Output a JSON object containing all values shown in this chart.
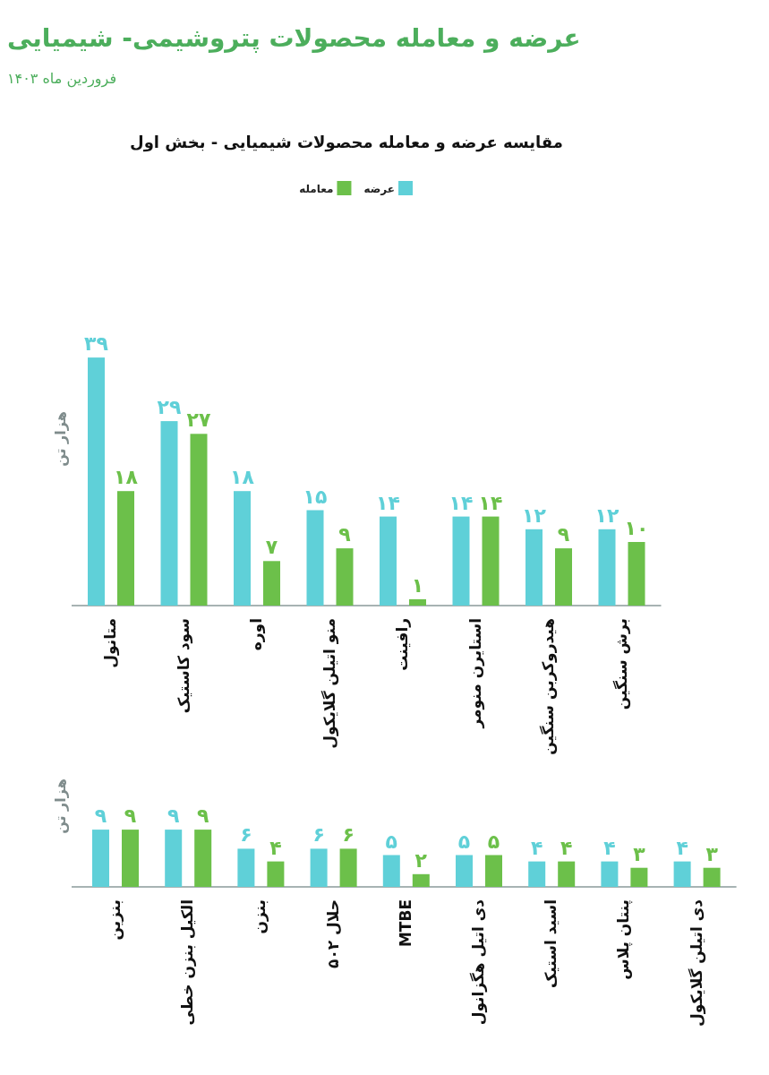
{
  "chart_data": [
    {
      "type": "bar",
      "title": "مقایسه عرضه و معامله محصولات شیمیایی - بخش اول",
      "ylabel": "هزار تن",
      "legend": "top",
      "annotations": [
        "عرضه و معامله محصولات پتروشیمی- شیمیایی",
        "فروردین ماه ۱۴۰۳"
      ],
      "categories": [
        "متانول",
        "سود کاستیک",
        "اوره",
        "منو اتیلن گلایکول",
        "رافینت",
        "استایرن منومر",
        "هیدروکربن سنگین",
        "برش سنگین"
      ],
      "series": [
        {
          "name": "عرضه",
          "color": "#5fd0d8",
          "values": [
            39,
            29,
            18,
            15,
            14,
            14,
            12,
            12
          ],
          "value_labels": [
            "۳۹",
            "۲۹",
            "۱۸",
            "۱۵",
            "۱۴",
            "۱۴",
            "۱۲",
            "۱۲"
          ]
        },
        {
          "name": "معامله",
          "color": "#6cc04a",
          "values": [
            18,
            27,
            7,
            9,
            1,
            14,
            9,
            10
          ],
          "value_labels": [
            "۱۸",
            "۲۷",
            "۷",
            "۹",
            "۱",
            "۱۴",
            "۹",
            "۱۰"
          ]
        }
      ]
    },
    {
      "type": "bar",
      "ylabel": "هزار تن",
      "categories": [
        "بنزین",
        "الکیل بنزن خطی",
        "بنزن",
        "حلال ۵۰۲",
        "MTBE",
        "دی اتیل هگزانول",
        "اسید استیک",
        "پنتان پلاس",
        "دی اتیلن گلایکول"
      ],
      "series": [
        {
          "color": "#5fd0d8",
          "values": [
            9,
            9,
            6,
            6,
            5,
            5,
            4,
            4,
            4
          ],
          "value_labels": [
            "۹",
            "۹",
            "۶",
            "۶",
            "۵",
            "۵",
            "۴",
            "۴",
            "۴"
          ]
        },
        {
          "color": "#6cc04a",
          "values": [
            9,
            9,
            4,
            6,
            2,
            5,
            4,
            3,
            3
          ],
          "value_labels": [
            "۹",
            "۹",
            "۴",
            "۶",
            "۲",
            "۵",
            "۴",
            "۳",
            "۳"
          ]
        }
      ]
    }
  ]
}
